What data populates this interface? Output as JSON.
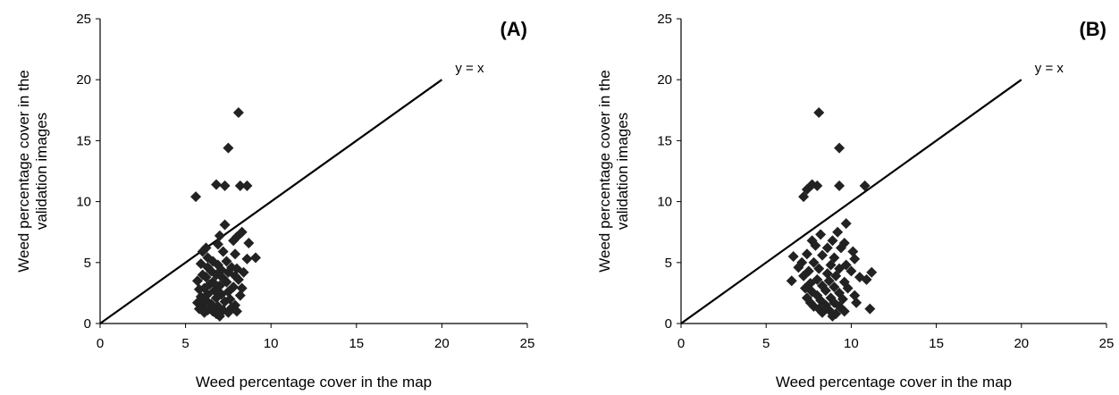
{
  "chart_data": [
    {
      "type": "scatter",
      "panel_label": "(A)",
      "xlabel": "Weed percentage cover in the map",
      "ylabel_lines": [
        "Weed percentage cover in the",
        "validation images"
      ],
      "xlim": [
        0,
        25
      ],
      "ylim": [
        0,
        25
      ],
      "xticks": [
        "0",
        "5",
        "10",
        "15",
        "20",
        "25"
      ],
      "yticks": [
        "0",
        "5",
        "10",
        "15",
        "20",
        "25"
      ],
      "grid": false,
      "reference_line": {
        "label": "y = x",
        "from": [
          0,
          0
        ],
        "to": [
          20,
          20
        ]
      },
      "series": [
        {
          "marker": "diamond",
          "color": "#222222",
          "points": [
            [
              8.1,
              17.3
            ],
            [
              7.5,
              14.4
            ],
            [
              5.6,
              10.4
            ],
            [
              6.8,
              11.4
            ],
            [
              7.3,
              11.3
            ],
            [
              8.2,
              11.3
            ],
            [
              8.6,
              11.3
            ],
            [
              7.3,
              8.1
            ],
            [
              8.3,
              7.5
            ],
            [
              7.0,
              7.2
            ],
            [
              8.0,
              7.1
            ],
            [
              7.8,
              6.8
            ],
            [
              6.9,
              6.5
            ],
            [
              8.7,
              6.6
            ],
            [
              6.2,
              6.2
            ],
            [
              6.0,
              5.9
            ],
            [
              7.2,
              5.9
            ],
            [
              7.9,
              5.7
            ],
            [
              6.3,
              5.4
            ],
            [
              8.6,
              5.3
            ],
            [
              9.1,
              5.4
            ],
            [
              6.6,
              5.1
            ],
            [
              7.4,
              5.1
            ],
            [
              5.9,
              4.9
            ],
            [
              6.9,
              4.8
            ],
            [
              7.7,
              4.6
            ],
            [
              6.3,
              4.6
            ],
            [
              8.0,
              4.5
            ],
            [
              7.1,
              4.4
            ],
            [
              6.5,
              4.3
            ],
            [
              7.5,
              4.2
            ],
            [
              8.4,
              4.2
            ],
            [
              6.0,
              4.0
            ],
            [
              6.8,
              4.0
            ],
            [
              7.9,
              3.9
            ],
            [
              6.2,
              3.8
            ],
            [
              7.2,
              3.7
            ],
            [
              8.1,
              3.6
            ],
            [
              5.7,
              3.5
            ],
            [
              6.6,
              3.4
            ],
            [
              7.4,
              3.4
            ],
            [
              6.4,
              3.2
            ],
            [
              7.0,
              3.1
            ],
            [
              7.8,
              3.0
            ],
            [
              6.1,
              2.9
            ],
            [
              8.3,
              2.9
            ],
            [
              5.8,
              2.8
            ],
            [
              6.7,
              2.7
            ],
            [
              7.5,
              2.6
            ],
            [
              6.3,
              2.4
            ],
            [
              7.1,
              2.4
            ],
            [
              8.2,
              2.3
            ],
            [
              5.9,
              2.2
            ],
            [
              6.8,
              2.1
            ],
            [
              7.6,
              2.0
            ],
            [
              6.2,
              1.9
            ],
            [
              7.3,
              1.8
            ],
            [
              5.7,
              1.7
            ],
            [
              6.5,
              1.6
            ],
            [
              7.9,
              1.5
            ],
            [
              6.0,
              1.4
            ],
            [
              6.9,
              1.4
            ],
            [
              7.7,
              1.3
            ],
            [
              5.8,
              1.2
            ],
            [
              6.3,
              1.1
            ],
            [
              7.2,
              1.1
            ],
            [
              6.6,
              1.0
            ],
            [
              8.0,
              1.0
            ],
            [
              6.1,
              0.9
            ],
            [
              7.5,
              0.9
            ],
            [
              6.8,
              0.8
            ],
            [
              7.0,
              0.6
            ]
          ]
        }
      ]
    },
    {
      "type": "scatter",
      "panel_label": "(B)",
      "xlabel": "Weed percentage cover in the map",
      "ylabel_lines": [
        "Weed percentage cover in the",
        "validation images"
      ],
      "xlim": [
        0,
        25
      ],
      "ylim": [
        0,
        25
      ],
      "xticks": [
        "0",
        "5",
        "10",
        "15",
        "20",
        "25"
      ],
      "yticks": [
        "0",
        "5",
        "10",
        "15",
        "20",
        "25"
      ],
      "grid": false,
      "reference_line": {
        "label": "y = x",
        "from": [
          0,
          0
        ],
        "to": [
          20,
          20
        ]
      },
      "series": [
        {
          "marker": "diamond",
          "color": "#222222",
          "points": [
            [
              8.1,
              17.3
            ],
            [
              9.3,
              14.4
            ],
            [
              7.2,
              10.4
            ],
            [
              7.4,
              11.0
            ],
            [
              7.7,
              11.4
            ],
            [
              8.0,
              11.3
            ],
            [
              9.3,
              11.3
            ],
            [
              10.8,
              11.3
            ],
            [
              9.7,
              8.2
            ],
            [
              8.2,
              7.3
            ],
            [
              9.2,
              7.5
            ],
            [
              7.7,
              6.8
            ],
            [
              8.9,
              6.8
            ],
            [
              9.6,
              6.6
            ],
            [
              7.9,
              6.4
            ],
            [
              8.6,
              6.2
            ],
            [
              9.4,
              6.2
            ],
            [
              10.1,
              5.9
            ],
            [
              6.6,
              5.5
            ],
            [
              7.4,
              5.7
            ],
            [
              8.3,
              5.6
            ],
            [
              9.0,
              5.4
            ],
            [
              10.2,
              5.3
            ],
            [
              7.1,
              5.0
            ],
            [
              7.8,
              5.0
            ],
            [
              8.8,
              4.8
            ],
            [
              9.7,
              4.8
            ],
            [
              6.9,
              4.6
            ],
            [
              8.1,
              4.5
            ],
            [
              9.3,
              4.5
            ],
            [
              7.5,
              4.3
            ],
            [
              10.0,
              4.3
            ],
            [
              11.2,
              4.2
            ],
            [
              8.6,
              4.1
            ],
            [
              7.2,
              3.9
            ],
            [
              9.1,
              3.9
            ],
            [
              10.5,
              3.8
            ],
            [
              6.5,
              3.5
            ],
            [
              8.0,
              3.6
            ],
            [
              8.7,
              3.5
            ],
            [
              9.6,
              3.4
            ],
            [
              7.6,
              3.3
            ],
            [
              10.9,
              3.6
            ],
            [
              8.3,
              3.1
            ],
            [
              9.0,
              3.0
            ],
            [
              7.3,
              2.9
            ],
            [
              9.8,
              2.9
            ],
            [
              8.5,
              2.7
            ],
            [
              7.7,
              2.6
            ],
            [
              9.3,
              2.5
            ],
            [
              8.0,
              2.3
            ],
            [
              10.2,
              2.3
            ],
            [
              7.4,
              2.1
            ],
            [
              8.8,
              2.1
            ],
            [
              9.5,
              2.0
            ],
            [
              8.2,
              1.9
            ],
            [
              7.6,
              1.7
            ],
            [
              9.0,
              1.7
            ],
            [
              10.3,
              1.7
            ],
            [
              8.5,
              1.5
            ],
            [
              7.8,
              1.4
            ],
            [
              9.3,
              1.4
            ],
            [
              8.1,
              1.2
            ],
            [
              11.1,
              1.2
            ],
            [
              8.7,
              1.1
            ],
            [
              9.6,
              1.0
            ],
            [
              8.3,
              0.9
            ],
            [
              9.1,
              0.8
            ],
            [
              8.9,
              0.6
            ]
          ]
        }
      ]
    }
  ]
}
